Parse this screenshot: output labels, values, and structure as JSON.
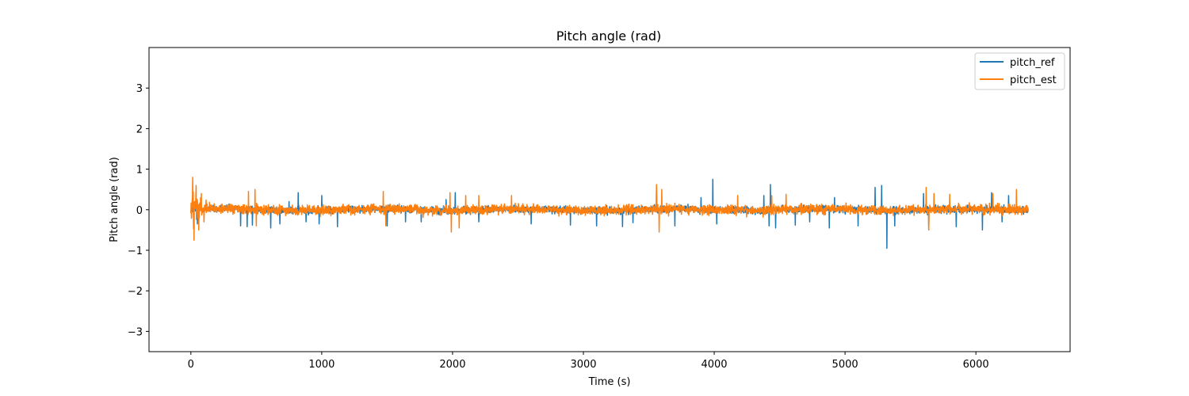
{
  "chart_data": {
    "type": "line",
    "title": "Pitch angle (rad)",
    "xlabel": "Time (s)",
    "ylabel": "Pitch angle (rad)",
    "xlim": [
      -320,
      6720
    ],
    "ylim": [
      -3.5,
      4.0
    ],
    "xticks": [
      0,
      1000,
      2000,
      3000,
      4000,
      5000,
      6000
    ],
    "xtick_labels": [
      "0",
      "1000",
      "2000",
      "3000",
      "4000",
      "5000",
      "6000"
    ],
    "yticks": [
      -3,
      -2,
      -1,
      0,
      1,
      2,
      3
    ],
    "ytick_labels": [
      "−3",
      "−2",
      "−1",
      "0",
      "1",
      "2",
      "3"
    ],
    "grid": false,
    "legend_position": "top-right",
    "x_range": [
      0,
      6400
    ],
    "series": [
      {
        "name": "pitch_ref",
        "color": "#1f77b4",
        "spikes": [
          [
            20,
            0.15
          ],
          [
            50,
            -0.35
          ],
          [
            380,
            -0.4
          ],
          [
            430,
            -0.42
          ],
          [
            470,
            -0.38
          ],
          [
            610,
            -0.45
          ],
          [
            680,
            -0.35
          ],
          [
            750,
            0.2
          ],
          [
            820,
            0.42
          ],
          [
            880,
            -0.3
          ],
          [
            980,
            -0.35
          ],
          [
            1000,
            0.35
          ],
          [
            1120,
            -0.42
          ],
          [
            1500,
            -0.4
          ],
          [
            1640,
            -0.3
          ],
          [
            1760,
            -0.3
          ],
          [
            1950,
            0.25
          ],
          [
            2020,
            0.42
          ],
          [
            2200,
            -0.3
          ],
          [
            2600,
            -0.35
          ],
          [
            2900,
            -0.38
          ],
          [
            3100,
            -0.4
          ],
          [
            3300,
            -0.42
          ],
          [
            3380,
            -0.32
          ],
          [
            3560,
            0.6
          ],
          [
            3700,
            -0.4
          ],
          [
            3900,
            0.3
          ],
          [
            3990,
            0.75
          ],
          [
            4020,
            -0.35
          ],
          [
            4380,
            0.35
          ],
          [
            4420,
            -0.4
          ],
          [
            4430,
            0.62
          ],
          [
            4470,
            -0.45
          ],
          [
            4620,
            -0.38
          ],
          [
            4730,
            -0.3
          ],
          [
            4880,
            -0.45
          ],
          [
            4920,
            0.3
          ],
          [
            5100,
            -0.4
          ],
          [
            5230,
            0.55
          ],
          [
            5280,
            0.6
          ],
          [
            5320,
            -0.95
          ],
          [
            5380,
            -0.4
          ],
          [
            5600,
            0.4
          ],
          [
            5640,
            -0.5
          ],
          [
            5850,
            -0.42
          ],
          [
            6050,
            -0.5
          ],
          [
            6120,
            0.42
          ],
          [
            6200,
            -0.3
          ],
          [
            6250,
            0.35
          ]
        ]
      },
      {
        "name": "pitch_est",
        "color": "#ff7f0e",
        "spikes": [
          [
            15,
            0.8
          ],
          [
            25,
            -0.75
          ],
          [
            40,
            0.6
          ],
          [
            60,
            -0.5
          ],
          [
            80,
            0.4
          ],
          [
            100,
            -0.3
          ],
          [
            440,
            0.45
          ],
          [
            490,
            0.5
          ],
          [
            500,
            -0.4
          ],
          [
            1470,
            0.45
          ],
          [
            1490,
            -0.4
          ],
          [
            1980,
            0.42
          ],
          [
            1990,
            -0.55
          ],
          [
            2050,
            -0.45
          ],
          [
            2100,
            0.35
          ],
          [
            2200,
            0.35
          ],
          [
            2450,
            0.35
          ],
          [
            3560,
            0.62
          ],
          [
            3580,
            -0.55
          ],
          [
            3600,
            0.5
          ],
          [
            4180,
            0.35
          ],
          [
            4440,
            0.35
          ],
          [
            4550,
            0.38
          ],
          [
            5620,
            0.55
          ],
          [
            5640,
            -0.5
          ],
          [
            5680,
            0.4
          ],
          [
            5800,
            0.38
          ],
          [
            6130,
            0.4
          ],
          [
            6310,
            0.5
          ]
        ]
      }
    ]
  }
}
